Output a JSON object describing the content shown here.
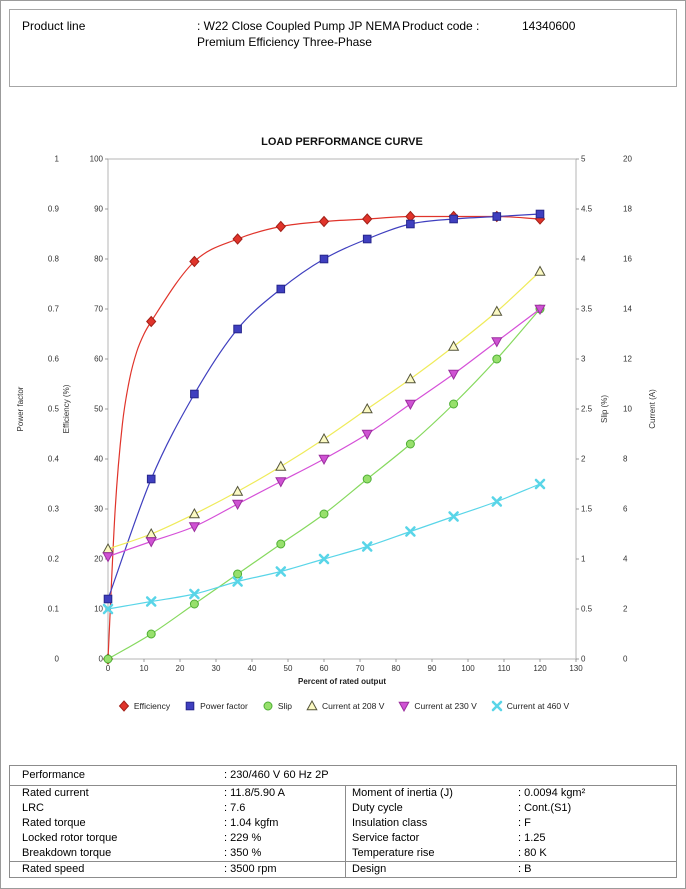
{
  "header": {
    "product_line_label": "Product line",
    "product_line_value": ": W22 Close Coupled Pump JP NEMA Premium Efficiency Three-Phase",
    "product_code_label": "Product code :",
    "product_code_value": "14340600"
  },
  "chart_data": {
    "type": "line",
    "title": "LOAD PERFORMANCE CURVE",
    "xlabel": "Percent of rated output",
    "xlim": [
      0,
      130
    ],
    "x_tick_step": 10,
    "grid": false,
    "legend_position": "bottom",
    "axes": [
      {
        "id": "power_factor",
        "title": "Power factor",
        "side": "left",
        "position": "outer",
        "min": 0,
        "max": 1,
        "step": 0.1
      },
      {
        "id": "efficiency",
        "title": "Efficiency (%)",
        "side": "left",
        "position": "inner",
        "min": 0,
        "max": 100,
        "step": 10
      },
      {
        "id": "slip",
        "title": "Slip (%)",
        "side": "right",
        "position": "inner",
        "min": 0,
        "max": 5,
        "step": 0.5
      },
      {
        "id": "current",
        "title": "Current (A)",
        "side": "right",
        "position": "outer",
        "min": 0,
        "max": 20,
        "step": 2
      }
    ],
    "x": [
      0,
      12,
      24,
      36,
      48,
      60,
      72,
      84,
      96,
      108,
      120
    ],
    "series": [
      {
        "name": "Efficiency",
        "axis": "efficiency",
        "marker": "diamond",
        "color": "#e0342b",
        "marker_fill": "#e0342b",
        "marker_stroke": "#a32018",
        "values": [
          0,
          67.5,
          79.5,
          84,
          86.5,
          87.5,
          88,
          88.5,
          88.5,
          88.5,
          88
        ],
        "line_support": {
          "x": [
            2,
            4,
            6,
            8,
            10
          ],
          "v": [
            30,
            47,
            56,
            61.5,
            65
          ]
        }
      },
      {
        "name": "Power factor",
        "axis": "power_factor",
        "marker": "square",
        "color": "#3f3fbf",
        "marker_fill": "#3f3fbf",
        "marker_stroke": "#26268c",
        "values": [
          0.12,
          0.36,
          0.53,
          0.66,
          0.74,
          0.8,
          0.84,
          0.87,
          0.88,
          0.885,
          0.89
        ]
      },
      {
        "name": "Slip",
        "axis": "slip",
        "marker": "circle",
        "color": "#86d95e",
        "marker_fill": "#97e06c",
        "marker_stroke": "#4eae35",
        "values": [
          0,
          0.25,
          0.55,
          0.85,
          1.15,
          1.45,
          1.8,
          2.15,
          2.55,
          3.0,
          3.5
        ]
      },
      {
        "name": "Current at 208 V",
        "axis": "current",
        "marker": "triangle-up",
        "color": "#efeb5a",
        "marker_fill": "#fbf9c3",
        "marker_stroke": "#55553a",
        "values": [
          4.4,
          5.0,
          5.8,
          6.7,
          7.7,
          8.8,
          10.0,
          11.2,
          12.5,
          13.9,
          15.5
        ]
      },
      {
        "name": "Current at 230 V",
        "axis": "current",
        "marker": "triangle-down",
        "color": "#d550d8",
        "marker_fill": "#cf52d3",
        "marker_stroke": "#9b2f9e",
        "values": [
          4.1,
          4.7,
          5.3,
          6.2,
          7.1,
          8.0,
          9.0,
          10.2,
          11.4,
          12.7,
          14.0
        ]
      },
      {
        "name": "Current at 460 V",
        "axis": "current",
        "marker": "x",
        "color": "#59d5e8",
        "marker_fill": "#59d5e8",
        "marker_stroke": "#3fbfd4",
        "values": [
          2.0,
          2.3,
          2.6,
          3.1,
          3.5,
          4.0,
          4.5,
          5.1,
          5.7,
          6.3,
          7.0
        ]
      }
    ]
  },
  "specs": {
    "performance_label": "Performance",
    "performance_value": ": 230/460 V 60 Hz 2P",
    "rows": [
      {
        "l1": "Rated current",
        "v1": ": 11.8/5.90 A",
        "l2": "Moment of inertia (J)",
        "v2": ": 0.0094 kgm²"
      },
      {
        "l1": "LRC",
        "v1": ": 7.6",
        "l2": "Duty cycle",
        "v2": ": Cont.(S1)"
      },
      {
        "l1": "Rated torque",
        "v1": ": 1.04 kgfm",
        "l2": "Insulation class",
        "v2": ": F"
      },
      {
        "l1": "Locked rotor torque",
        "v1": ": 229 %",
        "l2": "Service factor",
        "v2": ": 1.25"
      },
      {
        "l1": "Breakdown torque",
        "v1": ": 350 %",
        "l2": "Temperature rise",
        "v2": ": 80 K"
      }
    ],
    "last_row": {
      "l1": "Rated speed",
      "v1": ": 3500 rpm",
      "l2": "Design",
      "v2": ": B"
    }
  }
}
